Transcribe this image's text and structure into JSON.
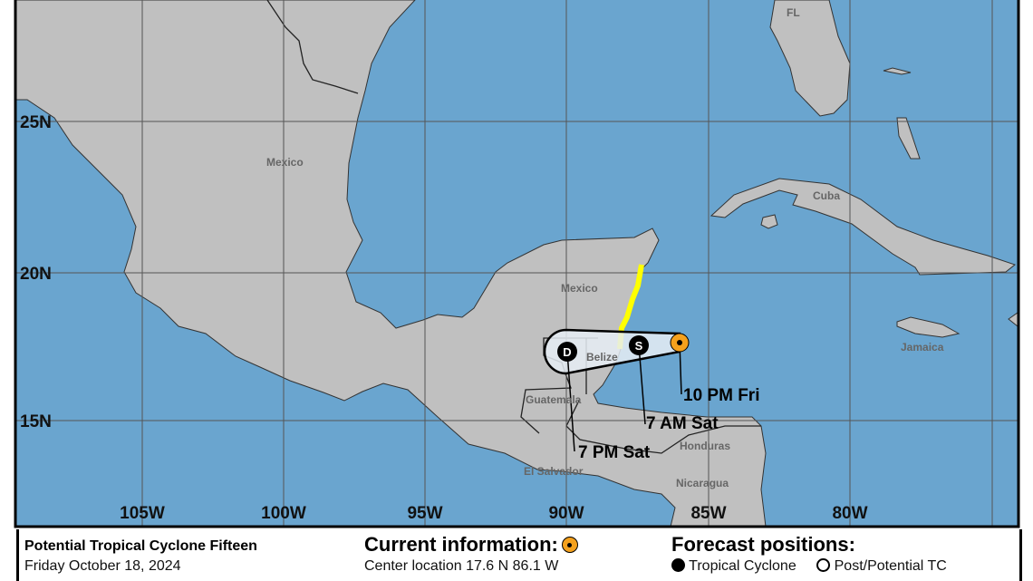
{
  "map": {
    "lat_labels": [
      "25N",
      "20N",
      "15N"
    ],
    "lon_labels": [
      "105W",
      "100W",
      "95W",
      "90W",
      "85W",
      "80W"
    ],
    "place_labels": {
      "mexico": "Mexico",
      "mexico_yucatan": "Mexico",
      "fl": "FL",
      "cuba": "Cuba",
      "jamaica": "Jamaica",
      "belize": "Belize",
      "guatemala": "Guatemala",
      "honduras": "Honduras",
      "el_salvador": "El Salvador",
      "nicaragua": "Nicaragua"
    },
    "forecast_points": [
      {
        "label": "10 PM Fri",
        "symbol": "",
        "type": "current"
      },
      {
        "label": "7 AM Sat",
        "symbol": "S",
        "type": "tropical-storm"
      },
      {
        "label": "7 PM Sat",
        "symbol": "D",
        "type": "tropical-depression"
      }
    ],
    "colors": {
      "ocean": "#6aa5cf",
      "land": "#c0c0c0",
      "warning": "#ffff00",
      "current": "#f5a11d",
      "cone": "#e6edf4"
    }
  },
  "legend": {
    "storm_name": "Potential Tropical Cyclone Fifteen",
    "date": "Friday October 18, 2024",
    "current_title": "Current information:",
    "center_location": "Center location 17.6 N 86.1 W",
    "forecast_title": "Forecast positions:",
    "tropical_cyclone": "Tropical Cyclone",
    "post_potential": "Post/Potential TC"
  }
}
